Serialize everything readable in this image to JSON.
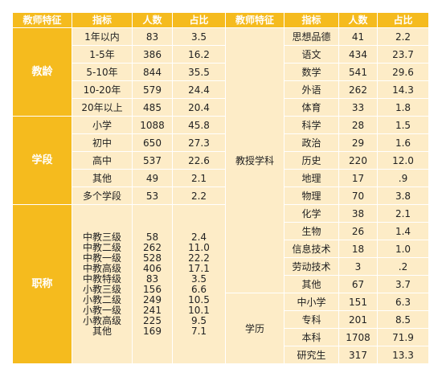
{
  "headers": [
    "教师特征",
    "指标",
    "人数",
    "占比",
    "教师特征",
    "指标",
    "人数",
    "占比"
  ],
  "left": {
    "groups": [
      {
        "label": "教龄",
        "rows": [
          {
            "item": "1年以内",
            "count": "83",
            "pct": "3.5"
          },
          {
            "item": "1-5年",
            "count": "386",
            "pct": "16.2"
          },
          {
            "item": "5-10年",
            "count": "844",
            "pct": "35.5"
          },
          {
            "item": "10-20年",
            "count": "579",
            "pct": "24.4"
          },
          {
            "item": "20年以上",
            "count": "485",
            "pct": "20.4"
          }
        ]
      },
      {
        "label": "学段",
        "rows": [
          {
            "item": "小学",
            "count": "1088",
            "pct": "45.8"
          },
          {
            "item": "初中",
            "count": "650",
            "pct": "27.3"
          },
          {
            "item": "高中",
            "count": "537",
            "pct": "22.6"
          },
          {
            "item": "其他",
            "count": "49",
            "pct": "2.1"
          },
          {
            "item": "多个学段",
            "count": "53",
            "pct": "2.2"
          }
        ]
      }
    ],
    "title_group": {
      "label": "职称",
      "items": [
        "中教三级",
        "中教二级",
        "中教一级",
        "中教高级",
        "中教特级",
        "小教三级",
        "小教二级",
        "小教一级",
        "小教高级",
        "其他"
      ],
      "counts": [
        "58",
        "262",
        "528",
        "406",
        "83",
        "156",
        "249",
        "241",
        "225",
        "169"
      ],
      "pcts": [
        "2.4",
        "11.0",
        "22.2",
        "17.1",
        "3.5",
        "6.6",
        "10.5",
        "10.1",
        "9.5",
        "7.1"
      ]
    }
  },
  "right": {
    "subject": {
      "label": "教授学科",
      "rows": [
        {
          "item": "思想品德",
          "count": "41",
          "pct": "2.2"
        },
        {
          "item": "语文",
          "count": "434",
          "pct": "23.7"
        },
        {
          "item": "数学",
          "count": "541",
          "pct": "29.6"
        },
        {
          "item": "外语",
          "count": "262",
          "pct": "14.3"
        },
        {
          "item": "体育",
          "count": "33",
          "pct": "1.8"
        },
        {
          "item": "科学",
          "count": "28",
          "pct": "1.5"
        },
        {
          "item": "政治",
          "count": "29",
          "pct": "1.6"
        },
        {
          "item": "历史",
          "count": "220",
          "pct": "12.0"
        },
        {
          "item": "地理",
          "count": "17",
          "pct": ".9"
        },
        {
          "item": "物理",
          "count": "70",
          "pct": "3.8"
        },
        {
          "item": "化学",
          "count": "38",
          "pct": "2.1"
        },
        {
          "item": "生物",
          "count": "26",
          "pct": "1.4"
        },
        {
          "item": "信息技术",
          "count": "18",
          "pct": "1.0"
        },
        {
          "item": "劳动技术",
          "count": "3",
          "pct": ".2"
        },
        {
          "item": "其他",
          "count": "67",
          "pct": "3.7"
        }
      ]
    },
    "education": {
      "label": "学历",
      "rows": [
        {
          "item": "中小学",
          "count": "151",
          "pct": "6.3"
        },
        {
          "item": "专科",
          "count": "201",
          "pct": "8.5"
        },
        {
          "item": "本科",
          "count": "1708",
          "pct": "71.9"
        },
        {
          "item": "研究生",
          "count": "317",
          "pct": "13.3"
        }
      ]
    }
  },
  "colors": {
    "header_bg": "#f5bb1e",
    "cell_bg": "#fdecc7",
    "header_text": "#ffffff"
  }
}
